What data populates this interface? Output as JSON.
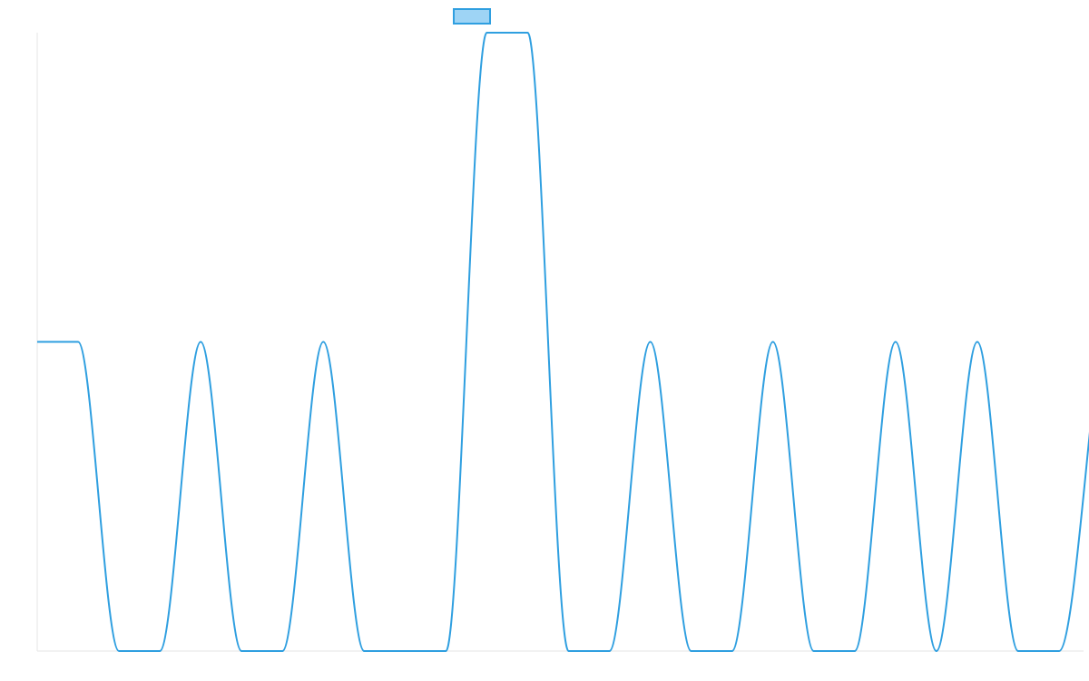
{
  "chart_data": {
    "type": "line",
    "title": "",
    "xlabel": "",
    "ylabel": "",
    "x": [
      0,
      0.5,
      1,
      2,
      3,
      4,
      5,
      6,
      7,
      8,
      9,
      10,
      11,
      12,
      13,
      14,
      15,
      16,
      17,
      18,
      19,
      20,
      21,
      22,
      23,
      24,
      25,
      26
    ],
    "series": [
      {
        "values": [
          1,
          1,
          1,
          0,
          0,
          1,
          0,
          0,
          1,
          0,
          0,
          0,
          2,
          2,
          0,
          0,
          1,
          0,
          0,
          1,
          0,
          0,
          1,
          0,
          1,
          0,
          0,
          1
        ],
        "color": "#2f9fe0",
        "fill": "#9ed4f5",
        "smooth": true
      }
    ],
    "ylim": [
      0,
      2
    ],
    "xlim": [
      0,
      25.6
    ],
    "grid": false,
    "legend": "top-center",
    "axis_color": "#e6e6e6"
  }
}
